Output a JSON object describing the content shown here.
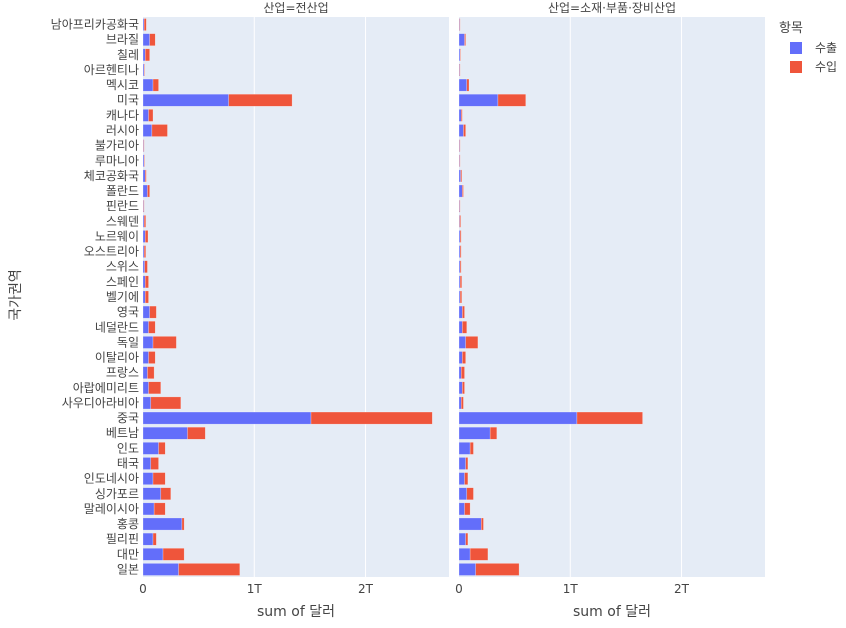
{
  "chart_data": {
    "type": "bar",
    "orientation": "horizontal",
    "barmode": "stack",
    "xlabel": "sum of 달러",
    "ylabel": "국가권역",
    "xlim": [
      0,
      2750000000000.0
    ],
    "xticks": [
      0,
      1000000000000.0,
      2000000000000.0
    ],
    "xtick_labels": [
      "0",
      "1T",
      "2T"
    ],
    "grid": true,
    "legend_title": "항목",
    "legend_position": "top-right",
    "colors": {
      "수출": "#636efa",
      "수입": "#ef553b",
      "plot_bg": "#e5ecf6"
    },
    "categories": [
      "남아프리카공화국",
      "브라질",
      "칠레",
      "아르헨티나",
      "멕시코",
      "미국",
      "캐나다",
      "러시아",
      "불가리아",
      "루마니아",
      "체코공화국",
      "폴란드",
      "핀란드",
      "스웨덴",
      "노르웨이",
      "오스트리아",
      "스위스",
      "스페인",
      "벨기에",
      "영국",
      "네덜란드",
      "독일",
      "이탈리아",
      "프랑스",
      "아랍에미리트",
      "사우디아라비아",
      "중국",
      "베트남",
      "인도",
      "태국",
      "인도네시아",
      "싱가포르",
      "말레이시아",
      "홍콩",
      "필리핀",
      "대만",
      "일본"
    ],
    "panels": [
      {
        "title": "산업=전산업",
        "series": [
          {
            "name": "수출",
            "values": [
              10000000000.0,
              60000000000.0,
              20000000000.0,
              10000000000.0,
              90000000000.0,
              770000000000.0,
              50000000000.0,
              80000000000.0,
              5000000000.0,
              10000000000.0,
              20000000000.0,
              40000000000.0,
              5000000000.0,
              10000000000.0,
              20000000000.0,
              10000000000.0,
              15000000000.0,
              20000000000.0,
              20000000000.0,
              60000000000.0,
              50000000000.0,
              90000000000.0,
              50000000000.0,
              40000000000.0,
              50000000000.0,
              70000000000.0,
              1510000000000.0,
              400000000000.0,
              140000000000.0,
              70000000000.0,
              90000000000.0,
              160000000000.0,
              100000000000.0,
              350000000000.0,
              90000000000.0,
              180000000000.0,
              320000000000.0
            ]
          },
          {
            "name": "수입",
            "values": [
              20000000000.0,
              50000000000.0,
              40000000000.0,
              5000000000.0,
              50000000000.0,
              570000000000.0,
              40000000000.0,
              140000000000.0,
              5000000000.0,
              5000000000.0,
              10000000000.0,
              20000000000.0,
              5000000000.0,
              15000000000.0,
              25000000000.0,
              15000000000.0,
              25000000000.0,
              30000000000.0,
              30000000000.0,
              60000000000.0,
              60000000000.0,
              210000000000.0,
              60000000000.0,
              60000000000.0,
              110000000000.0,
              270000000000.0,
              1090000000000.0,
              160000000000.0,
              60000000000.0,
              70000000000.0,
              110000000000.0,
              90000000000.0,
              100000000000.0,
              20000000000.0,
              30000000000.0,
              190000000000.0,
              550000000000.0
            ]
          }
        ]
      },
      {
        "title": "산업=소재·부품·장비산업",
        "series": [
          {
            "name": "수출",
            "values": [
              5000000000.0,
              50000000000.0,
              10000000000.0,
              5000000000.0,
              70000000000.0,
              350000000000.0,
              20000000000.0,
              40000000000.0,
              5000000000.0,
              5000000000.0,
              15000000000.0,
              30000000000.0,
              5000000000.0,
              5000000000.0,
              10000000000.0,
              10000000000.0,
              10000000000.0,
              10000000000.0,
              10000000000.0,
              30000000000.0,
              30000000000.0,
              60000000000.0,
              30000000000.0,
              20000000000.0,
              30000000000.0,
              20000000000.0,
              1060000000000.0,
              280000000000.0,
              100000000000.0,
              60000000000.0,
              50000000000.0,
              70000000000.0,
              50000000000.0,
              200000000000.0,
              60000000000.0,
              100000000000.0,
              150000000000.0
            ]
          },
          {
            "name": "수입",
            "values": [
              5000000000.0,
              10000000000.0,
              5000000000.0,
              5000000000.0,
              20000000000.0,
              250000000000.0,
              10000000000.0,
              20000000000.0,
              5000000000.0,
              5000000000.0,
              10000000000.0,
              10000000000.0,
              5000000000.0,
              10000000000.0,
              10000000000.0,
              10000000000.0,
              10000000000.0,
              15000000000.0,
              15000000000.0,
              20000000000.0,
              40000000000.0,
              110000000000.0,
              30000000000.0,
              30000000000.0,
              20000000000.0,
              20000000000.0,
              590000000000.0,
              60000000000.0,
              30000000000.0,
              20000000000.0,
              30000000000.0,
              60000000000.0,
              50000000000.0,
              20000000000.0,
              20000000000.0,
              160000000000.0,
              390000000000.0
            ]
          }
        ]
      }
    ]
  }
}
